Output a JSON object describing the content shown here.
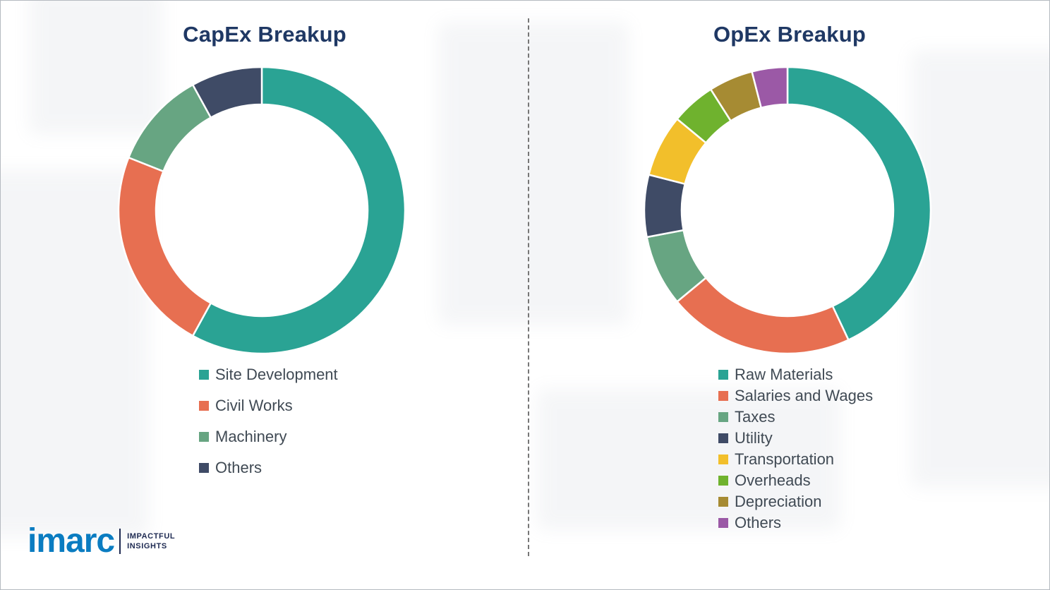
{
  "logo": {
    "name": "imarc",
    "tagline_line1": "IMPACTFUL",
    "tagline_line2": "INSIGHTS"
  },
  "chart_data": [
    {
      "type": "pie",
      "title": "CapEx Breakup",
      "donut": true,
      "start_angle": 0,
      "legend_position": "bottom",
      "labels": [
        "Site Development",
        "Civil Works",
        "Machinery",
        "Others"
      ],
      "values": [
        58,
        23,
        11,
        8
      ],
      "colors": [
        "#2aa394",
        "#e76f51",
        "#67a582",
        "#3f4b66"
      ]
    },
    {
      "type": "pie",
      "title": "OpEx Breakup",
      "donut": true,
      "start_angle": 0,
      "legend_position": "bottom",
      "labels": [
        "Raw Materials",
        "Salaries and Wages",
        "Taxes",
        "Utility",
        "Transportation",
        "Overheads",
        "Depreciation",
        "Others"
      ],
      "values": [
        43,
        21,
        8,
        7,
        7,
        5,
        5,
        4
      ],
      "colors": [
        "#2aa394",
        "#e76f51",
        "#67a582",
        "#3f4b66",
        "#f2bf2b",
        "#6fb22e",
        "#a68b33",
        "#9b59a6"
      ]
    }
  ]
}
